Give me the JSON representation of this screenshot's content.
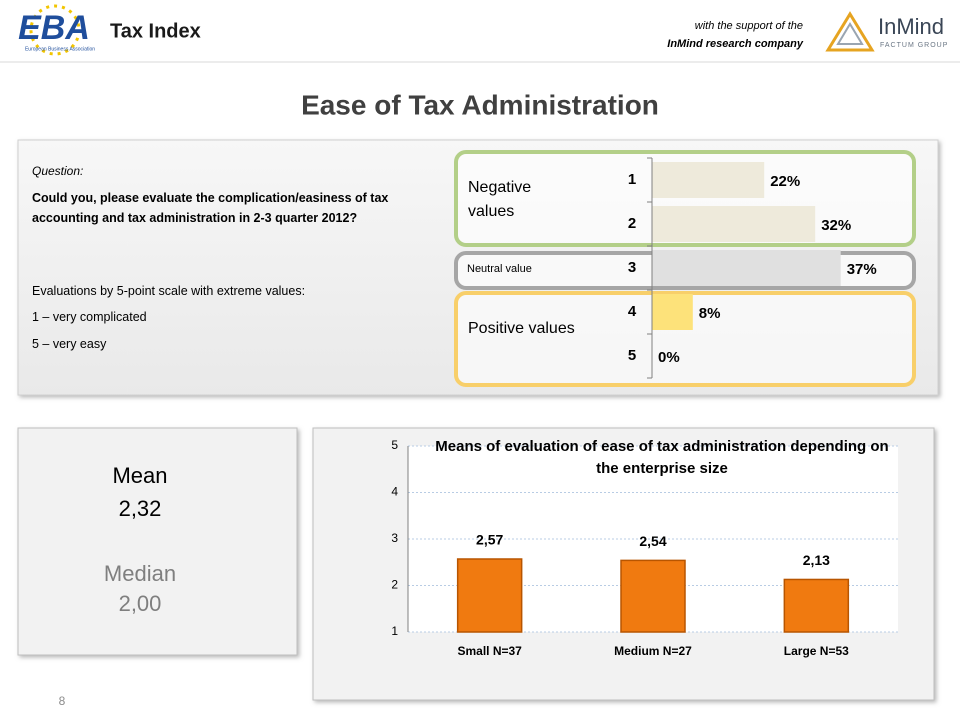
{
  "header": {
    "logo_text": "EBA",
    "logo_sub": "European Business Association",
    "title": "Tax Index",
    "support_line1": "with the support of the",
    "support_line2": "InMind research company",
    "partner_name": "InMind",
    "partner_sub": "FACTUM GROUP"
  },
  "page_title": "Ease of Tax Administration",
  "question": {
    "label": "Question:",
    "text": "Could you, please evaluate the complication/easiness of tax accounting and tax administration in 2-3 quarter 2012?",
    "scale_intro": "Evaluations by 5-point scale with extreme values:",
    "scale_low": "1 – very complicated",
    "scale_high": "5 – very easy"
  },
  "summary": {
    "mean_label": "Mean",
    "mean_value": "2,32",
    "median_label": "Median",
    "median_value": "2,00"
  },
  "page_number": "8",
  "chart_data": [
    {
      "type": "hbar",
      "categories": [
        "1",
        "2",
        "3",
        "4",
        "5"
      ],
      "values": [
        22,
        32,
        37,
        8,
        0
      ],
      "value_labels": [
        "22%",
        "32%",
        "37%",
        "8%",
        "0%"
      ],
      "colors": [
        "#eeeadb",
        "#eeeadb",
        "#e0e0e0",
        "#fde27a",
        "#fde27a"
      ],
      "xlim": [
        0,
        40
      ],
      "groups": [
        {
          "name": "Negative values",
          "color": "#b3cf88"
        },
        {
          "name": "Neutral value",
          "color": "#a6a6a6"
        },
        {
          "name": "Positive values",
          "color": "#f8cf6a"
        }
      ]
    },
    {
      "type": "bar",
      "title": "Means of evaluation of ease of tax administration depending on the enterprise size",
      "categories": [
        "Small N=37",
        "Medium N=27",
        "Large N=53"
      ],
      "values": [
        2.57,
        2.54,
        2.13
      ],
      "value_labels": [
        "2,57",
        "2,54",
        "2,13"
      ],
      "color": "#f07a10",
      "ylim": [
        1,
        5
      ],
      "yticks": [
        1,
        2,
        3,
        4,
        5
      ],
      "grid": true
    }
  ]
}
